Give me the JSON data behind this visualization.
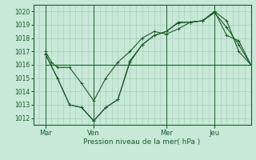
{
  "title": "Pression niveau de la mer( hPa )",
  "bg_color": "#c8e8d8",
  "grid_color": "#a8c8b8",
  "line_color": "#1a5e28",
  "xlim": [
    0,
    108
  ],
  "ylim": [
    1011.5,
    1020.5
  ],
  "yticks": [
    1012,
    1013,
    1014,
    1015,
    1016,
    1017,
    1018,
    1019,
    1020
  ],
  "xtick_labels": [
    "Mar",
    "Ven",
    "Mer",
    "Jeu"
  ],
  "xtick_positions": [
    6,
    30,
    66,
    90
  ],
  "vline_positions": [
    6,
    30,
    66,
    90
  ],
  "series1": {
    "x": [
      6,
      9,
      12,
      18,
      24,
      30,
      36,
      42,
      48,
      54,
      60,
      66,
      72,
      78,
      84,
      90,
      96,
      102,
      108
    ],
    "y": [
      1017.0,
      1016.2,
      1015.8,
      1015.8,
      1014.6,
      1013.3,
      1015.0,
      1016.2,
      1017.0,
      1018.0,
      1018.5,
      1018.3,
      1018.7,
      1019.2,
      1019.3,
      1020.0,
      1019.3,
      1017.0,
      1016.0
    ]
  },
  "series2": {
    "x": [
      6,
      12,
      18,
      24,
      30,
      36,
      42,
      48,
      54,
      60,
      66,
      72,
      78,
      84,
      90,
      96,
      102,
      108
    ],
    "y": [
      1016.8,
      1015.0,
      1013.0,
      1012.8,
      1011.8,
      1012.8,
      1013.4,
      1016.3,
      1017.5,
      1018.2,
      1018.5,
      1019.2,
      1019.2,
      1019.3,
      1020.0,
      1018.2,
      1017.8,
      1016.0
    ]
  },
  "series3": {
    "x": [
      6,
      108
    ],
    "y": [
      1016.0,
      1016.0
    ]
  },
  "series4": {
    "x": [
      6,
      12,
      18,
      24,
      30,
      36,
      42,
      48,
      54,
      60,
      66,
      72,
      78,
      84,
      90,
      96,
      102,
      108
    ],
    "y": [
      1016.8,
      1015.0,
      1013.0,
      1012.8,
      1011.8,
      1012.8,
      1013.4,
      1016.2,
      1017.5,
      1018.2,
      1018.5,
      1019.15,
      1019.2,
      1019.3,
      1019.9,
      1018.8,
      1017.5,
      1016.0
    ]
  }
}
